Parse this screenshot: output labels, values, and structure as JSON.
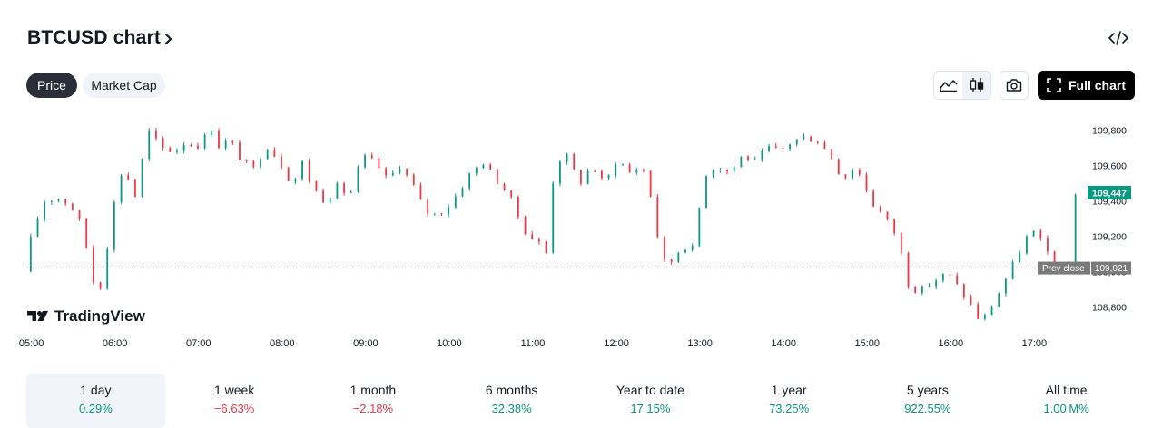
{
  "header": {
    "title": "BTCUSD chart",
    "embed_icon": "code-embed-icon"
  },
  "toggles": {
    "price": "Price",
    "market_cap": "Market Cap",
    "active": "price"
  },
  "toolbar": {
    "area_icon": "area-chart-icon",
    "candle_icon": "candlestick-icon",
    "camera_icon": "camera-icon",
    "full_chart_label": "Full chart",
    "active_style": "candles"
  },
  "colors": {
    "up": "#089981",
    "down": "#f23645",
    "last_price_bg": "#089981",
    "prev_close_bg": "#7a7a7a",
    "active_pill": "#2a2e39"
  },
  "chart_data": {
    "type": "candlestick",
    "symbol": "BTCUSD",
    "x_ticks": [
      "05:00",
      "06:00",
      "07:00",
      "08:00",
      "09:00",
      "10:00",
      "11:00",
      "12:00",
      "13:00",
      "14:00",
      "15:00",
      "16:00",
      "17:00"
    ],
    "y_ticks": [
      108800,
      109000,
      109200,
      109400,
      109600,
      109800
    ],
    "y_tick_labels": [
      "108,800",
      "109,000",
      "109,200",
      "109,400",
      "109,600",
      "109,800"
    ],
    "ylim": [
      108660,
      109880
    ],
    "x_start_hour": 4.95,
    "x_end_hour": 17.55,
    "bar_minutes": 5,
    "last_price": 109447,
    "last_price_label": "109,447",
    "prev_close": 109021,
    "prev_close_label": "109,021",
    "prev_close_text": "Prev close",
    "watermark": "TradingView",
    "grid": false,
    "close_path": [
      [
        4.95,
        109000
      ],
      [
        5.05,
        109220
      ],
      [
        5.2,
        109400
      ],
      [
        5.35,
        109420
      ],
      [
        5.5,
        109380
      ],
      [
        5.65,
        109260
      ],
      [
        5.78,
        108950
      ],
      [
        5.85,
        108880
      ],
      [
        5.92,
        109050
      ],
      [
        6.0,
        109300
      ],
      [
        6.1,
        109560
      ],
      [
        6.22,
        109520
      ],
      [
        6.28,
        109420
      ],
      [
        6.35,
        109600
      ],
      [
        6.45,
        109790
      ],
      [
        6.6,
        109700
      ],
      [
        6.75,
        109680
      ],
      [
        6.9,
        109740
      ],
      [
        7.0,
        109700
      ],
      [
        7.1,
        109750
      ],
      [
        7.2,
        109810
      ],
      [
        7.3,
        109690
      ],
      [
        7.4,
        109760
      ],
      [
        7.55,
        109630
      ],
      [
        7.7,
        109580
      ],
      [
        7.85,
        109720
      ],
      [
        7.95,
        109660
      ],
      [
        8.1,
        109560
      ],
      [
        8.15,
        109470
      ],
      [
        8.28,
        109620
      ],
      [
        8.4,
        109480
      ],
      [
        8.55,
        109400
      ],
      [
        8.7,
        109480
      ],
      [
        8.85,
        109430
      ],
      [
        9.0,
        109650
      ],
      [
        9.15,
        109620
      ],
      [
        9.3,
        109520
      ],
      [
        9.45,
        109600
      ],
      [
        9.6,
        109500
      ],
      [
        9.75,
        109340
      ],
      [
        9.9,
        109320
      ],
      [
        10.05,
        109380
      ],
      [
        10.15,
        109450
      ],
      [
        10.3,
        109560
      ],
      [
        10.45,
        109620
      ],
      [
        10.6,
        109520
      ],
      [
        10.75,
        109440
      ],
      [
        10.9,
        109280
      ],
      [
        11.0,
        109180
      ],
      [
        11.08,
        109200
      ],
      [
        11.15,
        109130
      ],
      [
        11.22,
        109100
      ],
      [
        11.3,
        109620
      ],
      [
        11.45,
        109650
      ],
      [
        11.6,
        109500
      ],
      [
        11.75,
        109600
      ],
      [
        11.9,
        109490
      ],
      [
        12.05,
        109640
      ],
      [
        12.2,
        109560
      ],
      [
        12.35,
        109600
      ],
      [
        12.45,
        109430
      ],
      [
        12.55,
        109160
      ],
      [
        12.62,
        109050
      ],
      [
        12.72,
        109060
      ],
      [
        12.82,
        109150
      ],
      [
        12.95,
        109130
      ],
      [
        13.1,
        109550
      ],
      [
        13.25,
        109600
      ],
      [
        13.4,
        109560
      ],
      [
        13.55,
        109660
      ],
      [
        13.7,
        109620
      ],
      [
        13.85,
        109700
      ],
      [
        14.0,
        109680
      ],
      [
        14.15,
        109740
      ],
      [
        14.3,
        109760
      ],
      [
        14.45,
        109740
      ],
      [
        14.6,
        109660
      ],
      [
        14.75,
        109520
      ],
      [
        14.9,
        109600
      ],
      [
        15.0,
        109500
      ],
      [
        15.1,
        109390
      ],
      [
        15.25,
        109310
      ],
      [
        15.4,
        109200
      ],
      [
        15.55,
        108900
      ],
      [
        15.7,
        108900
      ],
      [
        15.85,
        108950
      ],
      [
        16.0,
        108990
      ],
      [
        16.15,
        108900
      ],
      [
        16.3,
        108800
      ],
      [
        16.4,
        108710
      ],
      [
        16.55,
        108820
      ],
      [
        16.7,
        108960
      ],
      [
        16.85,
        109100
      ],
      [
        17.0,
        109240
      ],
      [
        17.15,
        109150
      ],
      [
        17.3,
        109030
      ],
      [
        17.4,
        108950
      ],
      [
        17.45,
        109050
      ],
      [
        17.5,
        109447
      ]
    ]
  },
  "periods": [
    {
      "label": "1 day",
      "value": "0.29%",
      "positive": true
    },
    {
      "label": "1 week",
      "value": "−6.63%",
      "positive": false
    },
    {
      "label": "1 month",
      "value": "−2.18%",
      "positive": false
    },
    {
      "label": "6 months",
      "value": "32.38%",
      "positive": true
    },
    {
      "label": "Year to date",
      "value": "17.15%",
      "positive": true
    },
    {
      "label": "1 year",
      "value": "73.25%",
      "positive": true
    },
    {
      "label": "5 years",
      "value": "922.55%",
      "positive": true
    },
    {
      "label": "All time",
      "value": "1.00 M%",
      "positive": true
    }
  ],
  "active_period": 0
}
